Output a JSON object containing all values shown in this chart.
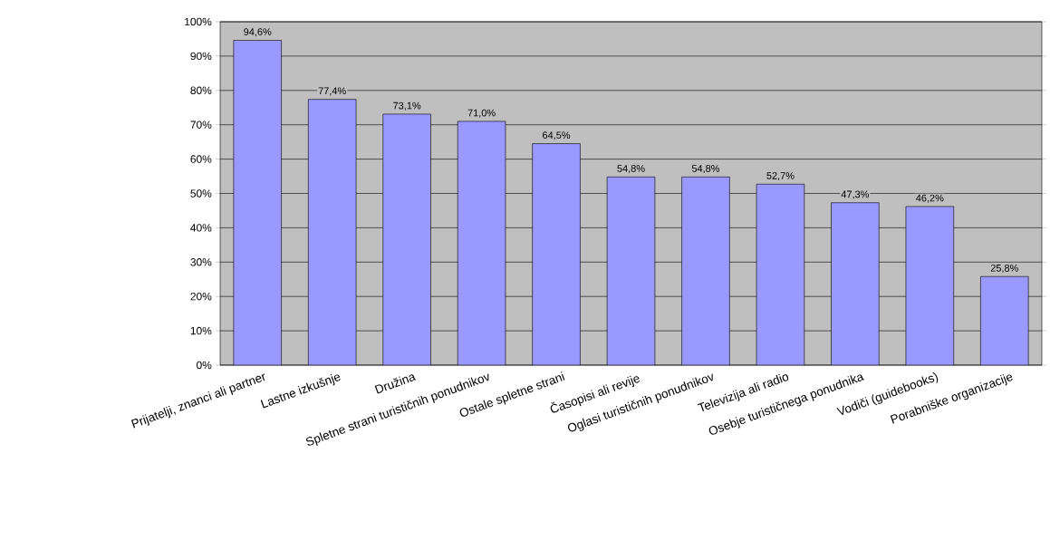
{
  "chart_data": {
    "type": "bar",
    "categories": [
      "Prijatelji, znanci ali partner",
      "Lastne izkušnje",
      "Družina",
      "Spletne strani turističnih ponudnikov",
      "Ostale spletne strani",
      "Časopisi ali revije",
      "Oglasi turističnih ponudnikov",
      "Televizija ali radio",
      "Osebje turističnega ponudnika",
      "Vodiči (guidebooks)",
      "Porabniške organizacije"
    ],
    "values": [
      94.6,
      77.4,
      73.1,
      71.0,
      64.5,
      54.8,
      54.8,
      52.7,
      47.3,
      46.2,
      25.8
    ],
    "value_labels": [
      "94,6%",
      "77,4%",
      "73,1%",
      "71,0%",
      "64,5%",
      "54,8%",
      "54,8%",
      "52,7%",
      "47,3%",
      "46,2%",
      "25,8%"
    ],
    "color": "#9999ff",
    "ylim": [
      0,
      100
    ],
    "yticks": [
      {
        "value": 0,
        "label": "0%"
      },
      {
        "value": 10,
        "label": "10%"
      },
      {
        "value": 20,
        "label": "20%"
      },
      {
        "value": 30,
        "label": "30%"
      },
      {
        "value": 40,
        "label": "40%"
      },
      {
        "value": 50,
        "label": "50%"
      },
      {
        "value": 60,
        "label": "60%"
      },
      {
        "value": 70,
        "label": "70%"
      },
      {
        "value": 80,
        "label": "80%"
      },
      {
        "value": 90,
        "label": "90%"
      },
      {
        "value": 100,
        "label": "100%"
      }
    ],
    "grid": "y"
  }
}
